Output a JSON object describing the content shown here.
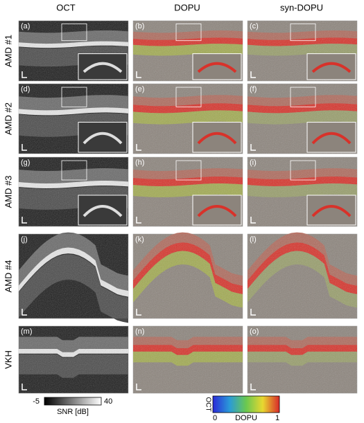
{
  "columns": [
    "OCT",
    "DOPU",
    "syn-DOPU"
  ],
  "rows": [
    {
      "label": "AMD #1",
      "panels": [
        "(a)",
        "(b)",
        "(c)"
      ]
    },
    {
      "label": "AMD #2",
      "panels": [
        "(d)",
        "(e)",
        "(f)"
      ]
    },
    {
      "label": "AMD #3",
      "panels": [
        "(g)",
        "(h)",
        "(i)"
      ]
    },
    {
      "label": "AMD #4",
      "panels": [
        "(j)",
        "(k)",
        "(l)"
      ]
    },
    {
      "label": "VKH",
      "panels": [
        "(m)",
        "(n)",
        "(o)"
      ]
    }
  ],
  "colorbars": {
    "oct": {
      "min": "-5",
      "max": "40",
      "label": "SNR [dB]"
    },
    "dopu": {
      "axis": "OCT",
      "min": "0",
      "max": "1",
      "label": "DOPU"
    }
  }
}
